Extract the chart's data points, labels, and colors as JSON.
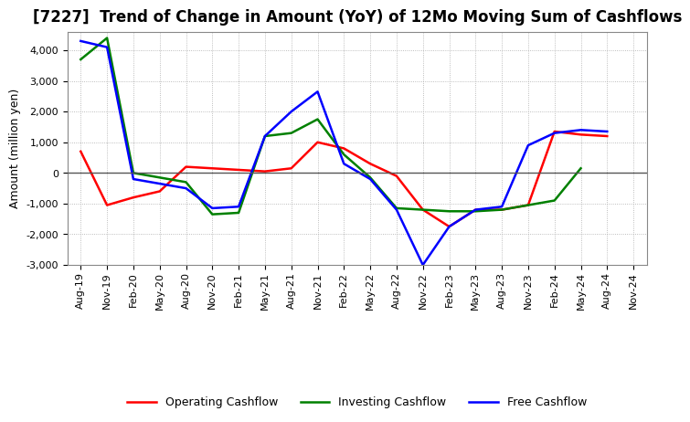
{
  "title": "[7227]  Trend of Change in Amount (YoY) of 12Mo Moving Sum of Cashflows",
  "ylabel": "Amount (million yen)",
  "x_labels": [
    "Aug-19",
    "Nov-19",
    "Feb-20",
    "May-20",
    "Aug-20",
    "Nov-20",
    "Feb-21",
    "May-21",
    "Aug-21",
    "Nov-21",
    "Feb-22",
    "May-22",
    "Aug-22",
    "Nov-22",
    "Feb-23",
    "May-23",
    "Aug-23",
    "Nov-23",
    "Feb-24",
    "May-24",
    "Aug-24",
    "Nov-24"
  ],
  "operating": [
    700,
    -1050,
    -800,
    -600,
    200,
    150,
    100,
    50,
    150,
    1000,
    800,
    300,
    -100,
    -1200,
    -1750,
    -1200,
    -1200,
    -1050,
    1350,
    1250,
    1200,
    null
  ],
  "investing": [
    3700,
    4400,
    0,
    -150,
    -300,
    -1350,
    -1300,
    1200,
    1300,
    1750,
    600,
    -150,
    -1150,
    -1200,
    -1250,
    -1250,
    -1200,
    -1050,
    -900,
    150,
    null,
    null
  ],
  "free": [
    4300,
    4100,
    -200,
    -350,
    -500,
    -1150,
    -1100,
    1200,
    2000,
    2650,
    300,
    -200,
    -1200,
    -3000,
    -1750,
    -1200,
    -1100,
    900,
    1300,
    1400,
    1350,
    null
  ],
  "operating_color": "#ff0000",
  "investing_color": "#008000",
  "free_color": "#0000ff",
  "ylim": [
    -3000,
    4600
  ],
  "yticks": [
    -3000,
    -2000,
    -1000,
    0,
    1000,
    2000,
    3000,
    4000
  ],
  "background_color": "#ffffff",
  "grid_color": "#aaaaaa",
  "zero_line_color": "#555555",
  "title_fontsize": 12,
  "ylabel_fontsize": 9,
  "tick_fontsize": 8,
  "legend_fontsize": 9,
  "linewidth": 1.8
}
